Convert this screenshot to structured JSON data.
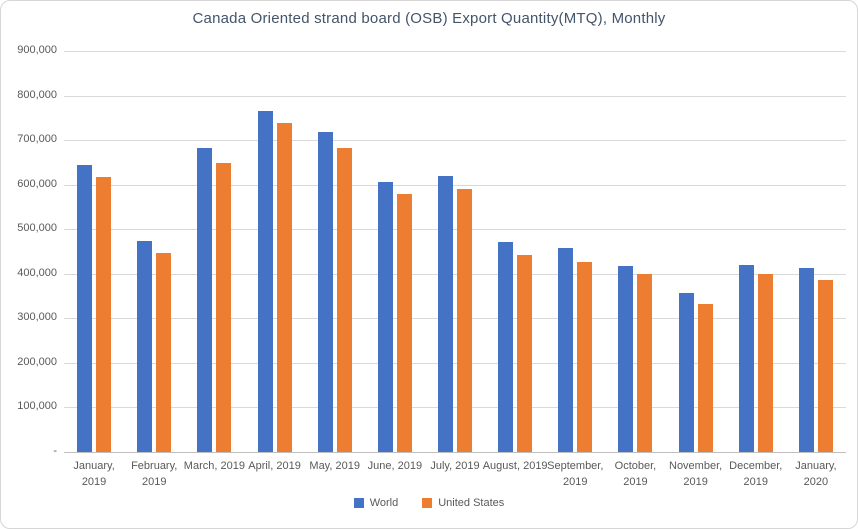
{
  "chart": {
    "title": "Canada Oriented strand board (OSB) Export Quantity(MTQ), Monthly",
    "colors": {
      "world": "#4472C4",
      "united_states": "#ED7D31",
      "gridline": "#D9D9D9",
      "axis_line": "#BFBFBF",
      "axis_text": "#595959",
      "title_text": "#44546A"
    }
  },
  "chart_data": {
    "type": "bar",
    "title": "Canada Oriented strand board (OSB) Export Quantity(MTQ), Monthly",
    "categories": [
      "January, 2019",
      "February, 2019",
      "March, 2019",
      "April, 2019",
      "May, 2019",
      "June, 2019",
      "July, 2019",
      "August, 2019",
      "September, 2019",
      "October, 2019",
      "November, 2019",
      "December, 2019",
      "January, 2020"
    ],
    "series": [
      {
        "name": "World",
        "color": "#4472C4",
        "values": [
          645000,
          474000,
          683000,
          765000,
          718000,
          606000,
          620000,
          471000,
          458000,
          417000,
          357000,
          419000,
          413000
        ]
      },
      {
        "name": "United States",
        "color": "#ED7D31",
        "values": [
          617000,
          447000,
          649000,
          738000,
          683000,
          579000,
          590000,
          442000,
          427000,
          400000,
          333000,
          400000,
          386000
        ]
      }
    ],
    "xlabel": "",
    "ylabel": "",
    "ylim": [
      0,
      900000
    ],
    "ytick_interval": 100000,
    "ytick_labels": [
      "-",
      "100,000",
      "200,000",
      "300,000",
      "400,000",
      "500,000",
      "600,000",
      "700,000",
      "800,000",
      "900,000"
    ],
    "grid": true,
    "legend_position": "bottom"
  }
}
